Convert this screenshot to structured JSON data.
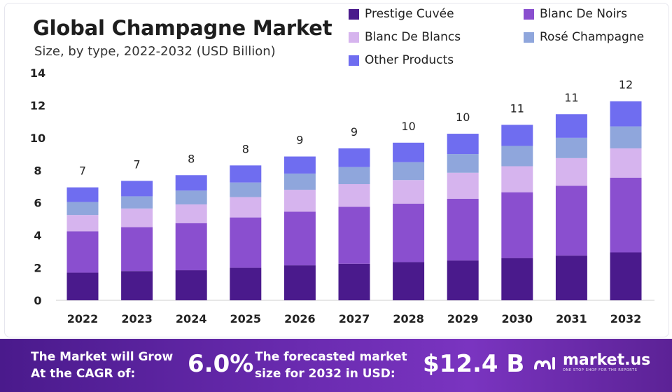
{
  "header": {
    "title": "Global Champagne Market",
    "subtitle": "Size, by type, 2022-2032 (USD Billion)"
  },
  "chart_data": {
    "type": "bar",
    "stacked": true,
    "categories": [
      "2022",
      "2023",
      "2024",
      "2025",
      "2026",
      "2027",
      "2028",
      "2029",
      "2030",
      "2031",
      "2032"
    ],
    "series": [
      {
        "name": "Prestige Cuvée",
        "color": "#4a1a8c",
        "values": [
          1.7,
          1.8,
          1.85,
          2.0,
          2.15,
          2.25,
          2.35,
          2.45,
          2.6,
          2.75,
          2.95
        ]
      },
      {
        "name": "Blanc De Noirs",
        "color": "#8a4fcf",
        "values": [
          2.55,
          2.7,
          2.9,
          3.1,
          3.3,
          3.5,
          3.6,
          3.8,
          4.05,
          4.3,
          4.6
        ]
      },
      {
        "name": "Blanc De Blancs",
        "color": "#d6b4ee",
        "values": [
          1.0,
          1.15,
          1.15,
          1.25,
          1.35,
          1.4,
          1.45,
          1.6,
          1.6,
          1.7,
          1.8
        ]
      },
      {
        "name": "Rosé Champagne",
        "color": "#8fa6dc",
        "values": [
          0.8,
          0.75,
          0.85,
          0.9,
          1.0,
          1.05,
          1.1,
          1.15,
          1.25,
          1.25,
          1.35
        ]
      },
      {
        "name": "Other Products",
        "color": "#6f6df0",
        "values": [
          0.9,
          0.95,
          0.95,
          1.05,
          1.05,
          1.15,
          1.2,
          1.25,
          1.3,
          1.45,
          1.55
        ]
      }
    ],
    "totals_labels": [
      "7",
      "7",
      "8",
      "8",
      "9",
      "9",
      "10",
      "10",
      "11",
      "11",
      "12"
    ],
    "y_ticks": [
      "0",
      "2",
      "4",
      "6",
      "8",
      "10",
      "12",
      "14"
    ],
    "ylim": [
      0,
      14
    ],
    "xlabel": "",
    "ylabel": "",
    "grid": false,
    "legend_position": "top-right"
  },
  "banner": {
    "cagr_label_line1": "The Market will Grow",
    "cagr_label_line2": "At the CAGR of:",
    "cagr_value": "6.0%",
    "forecast_label_line1": "The forecasted market",
    "forecast_label_line2": "size for 2032 in USD:",
    "forecast_value": "$12.4 B",
    "brand": "market.us",
    "brand_tagline": "ONE STOP SHOP FOR THE REPORTS"
  }
}
